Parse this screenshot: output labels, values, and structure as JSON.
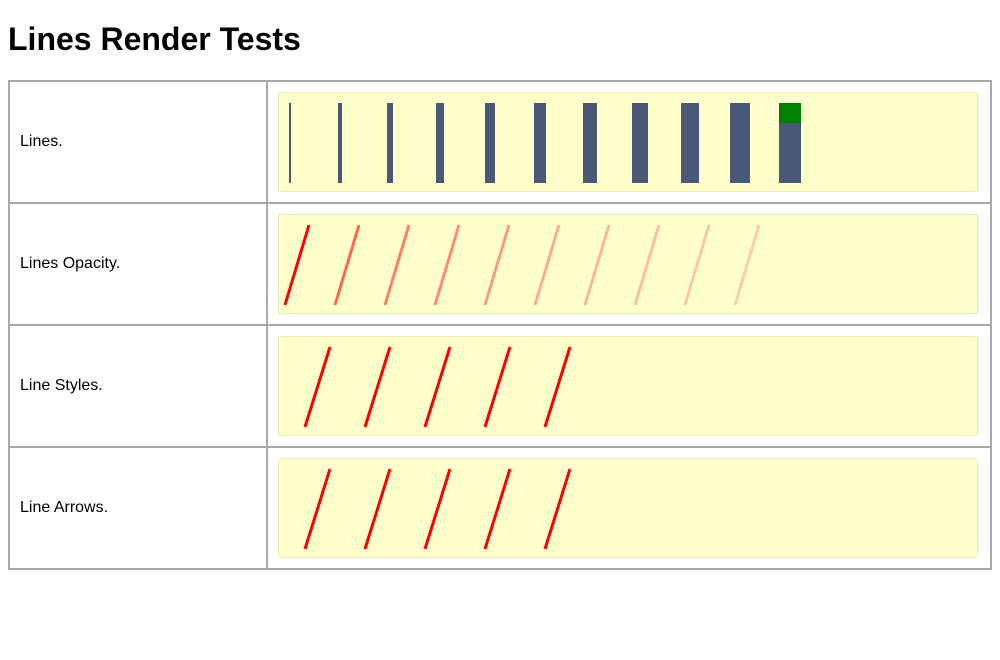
{
  "page": {
    "title": "Lines Render Tests"
  },
  "rows": [
    {
      "label": "Lines.",
      "kind": "widths",
      "line_color": "#4a5878",
      "accent_color": "#008000",
      "widths": [
        2,
        4,
        6,
        8,
        10,
        12,
        14,
        16,
        18,
        20,
        22
      ]
    },
    {
      "label": "Lines Opacity.",
      "kind": "opacity",
      "line_color": "#ff0000",
      "opacities": [
        1.0,
        0.6,
        0.5,
        0.45,
        0.4,
        0.33,
        0.29,
        0.25,
        0.22,
        0.2
      ]
    },
    {
      "label": "Line Styles.",
      "kind": "styles",
      "line_color": "#ff0000",
      "count": 5
    },
    {
      "label": "Line Arrows.",
      "kind": "arrows",
      "line_color": "#ff0000",
      "count": 5
    }
  ]
}
